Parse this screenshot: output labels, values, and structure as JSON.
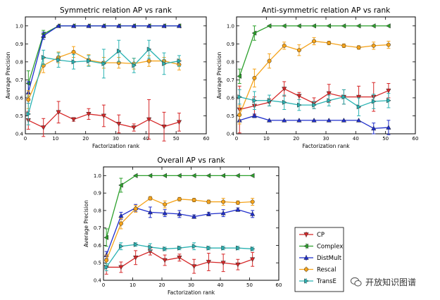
{
  "chart_data": [
    {
      "type": "line",
      "title": "Symmetric relation AP vs rank",
      "xlabel": "Factorization rank",
      "ylabel": "Average Precision",
      "xlim": [
        0,
        60
      ],
      "ylim": [
        0.4,
        1.05
      ],
      "xticks": [
        "0",
        "10",
        "20",
        "30",
        "40",
        "50",
        "60"
      ],
      "yticks": [
        "0.4",
        "0.5",
        "0.6",
        "0.7",
        "0.8",
        "0.9",
        "1.0"
      ],
      "x": [
        1,
        6,
        11,
        16,
        21,
        26,
        31,
        36,
        41,
        46,
        51
      ],
      "series": [
        {
          "name": "CP",
          "values": [
            0.475,
            0.435,
            0.52,
            0.48,
            0.51,
            0.5,
            0.455,
            0.435,
            0.48,
            0.44,
            0.465
          ],
          "err": [
            0.05,
            0.05,
            0.06,
            0.01,
            0.03,
            0.06,
            0.05,
            0.02,
            0.11,
            0.08,
            0.05
          ]
        },
        {
          "name": "Complex",
          "values": [
            0.68,
            0.955,
            1.0,
            1.0,
            1.0,
            1.0,
            1.0,
            1.0,
            1.0,
            1.0,
            1.0
          ],
          "err": [
            0.07,
            0.02,
            0,
            0,
            0,
            0,
            0,
            0,
            0,
            0,
            0
          ]
        },
        {
          "name": "DistMult",
          "values": [
            0.63,
            0.945,
            1.0,
            1.0,
            1.0,
            1.0,
            1.0,
            1.0,
            1.0,
            1.0,
            1.0
          ],
          "err": [
            0.06,
            0.02,
            0,
            0,
            0,
            0,
            0,
            0,
            0,
            0,
            0
          ]
        },
        {
          "name": "Rescal",
          "values": [
            0.59,
            0.78,
            0.825,
            0.855,
            0.81,
            0.795,
            0.795,
            0.79,
            0.805,
            0.805,
            0.785
          ],
          "err": [
            0.05,
            0.04,
            0.03,
            0.03,
            0.03,
            0.03,
            0.03,
            0.03,
            0.03,
            0.02,
            0.03
          ]
        },
        {
          "name": "TransE",
          "values": [
            0.51,
            0.825,
            0.81,
            0.8,
            0.805,
            0.79,
            0.86,
            0.78,
            0.87,
            0.79,
            0.805
          ],
          "err": [
            0.06,
            0.04,
            0.04,
            0.04,
            0.03,
            0.08,
            0.06,
            0.04,
            0.05,
            0.06,
            0.03
          ]
        }
      ]
    },
    {
      "type": "line",
      "title": "Anti-symmetric relation AP vs rank",
      "xlabel": "Factorization rank",
      "ylabel": "Average Precision",
      "xlim": [
        0,
        60
      ],
      "ylim": [
        0.4,
        1.05
      ],
      "xticks": [
        "0",
        "10",
        "20",
        "30",
        "40",
        "50",
        "60"
      ],
      "yticks": [
        "0.4",
        "0.5",
        "0.6",
        "0.7",
        "0.8",
        "0.9",
        "1.0"
      ],
      "x": [
        1,
        6,
        11,
        16,
        21,
        26,
        31,
        36,
        41,
        46,
        51
      ],
      "series": [
        {
          "name": "CP",
          "values": [
            0.535,
            0.555,
            0.575,
            0.65,
            0.61,
            0.57,
            0.625,
            0.605,
            0.605,
            0.605,
            0.64
          ],
          "err": [
            0.13,
            0.05,
            0.02,
            0.04,
            0.02,
            0.03,
            0.05,
            0.04,
            0.06,
            0.08,
            0.04
          ]
        },
        {
          "name": "Complex",
          "values": [
            0.72,
            0.96,
            1.0,
            1.0,
            1.0,
            1.0,
            1.0,
            1.0,
            1.0,
            1.0,
            1.0
          ],
          "err": [
            0.04,
            0.04,
            0,
            0,
            0,
            0,
            0,
            0,
            0,
            0,
            0
          ]
        },
        {
          "name": "DistMult",
          "values": [
            0.475,
            0.5,
            0.475,
            0.475,
            0.475,
            0.475,
            0.475,
            0.475,
            0.475,
            0.43,
            0.435
          ],
          "err": [
            0,
            0.01,
            0,
            0,
            0,
            0,
            0,
            0,
            0,
            0.03,
            0.04
          ]
        },
        {
          "name": "Rescal",
          "values": [
            0.505,
            0.71,
            0.805,
            0.89,
            0.865,
            0.915,
            0.905,
            0.89,
            0.88,
            0.89,
            0.895
          ],
          "err": [
            0.05,
            0.05,
            0.04,
            0.02,
            0.03,
            0.02,
            0.01,
            0.01,
            0.01,
            0.02,
            0.02
          ]
        },
        {
          "name": "TransE",
          "values": [
            0.605,
            0.585,
            0.585,
            0.575,
            0.56,
            0.56,
            0.585,
            0.605,
            0.55,
            0.58,
            0.585
          ],
          "err": [
            0.04,
            0.05,
            0.03,
            0.04,
            0.03,
            0.02,
            0.03,
            0.04,
            0.05,
            0.04,
            0.04
          ]
        }
      ]
    },
    {
      "type": "line",
      "title": "Overall AP vs rank",
      "xlabel": "Factorization rank",
      "ylabel": "Average Precision",
      "xlim": [
        0,
        60
      ],
      "ylim": [
        0.4,
        1.05
      ],
      "xticks": [
        "0",
        "10",
        "20",
        "30",
        "40",
        "50",
        "60"
      ],
      "yticks": [
        "0.4",
        "0.5",
        "0.6",
        "0.7",
        "0.8",
        "0.9",
        "1.0"
      ],
      "x": [
        1,
        6,
        11,
        16,
        21,
        26,
        31,
        36,
        41,
        46,
        51
      ],
      "legend_loc": "outside-right",
      "series": [
        {
          "name": "CP",
          "values": [
            0.475,
            0.475,
            0.53,
            0.565,
            0.515,
            0.53,
            0.48,
            0.505,
            0.5,
            0.49,
            0.52
          ],
          "err": [
            0.04,
            0.03,
            0.04,
            0.02,
            0.03,
            0.02,
            0.04,
            0.05,
            0.05,
            0.03,
            0.04
          ]
        },
        {
          "name": "Complex",
          "values": [
            0.645,
            0.945,
            1.0,
            1.0,
            1.0,
            1.0,
            1.0,
            1.0,
            1.0,
            1.0,
            1.0
          ],
          "err": [
            0.05,
            0.04,
            0,
            0,
            0,
            0,
            0,
            0,
            0,
            0,
            0
          ]
        },
        {
          "name": "DistMult",
          "values": [
            0.545,
            0.77,
            0.815,
            0.79,
            0.785,
            0.78,
            0.765,
            0.78,
            0.785,
            0.805,
            0.78
          ],
          "err": [
            0.02,
            0.02,
            0.02,
            0.03,
            0.02,
            0.02,
            0.01,
            0.01,
            0.02,
            0.01,
            0.02
          ]
        },
        {
          "name": "Rescal",
          "values": [
            0.515,
            0.725,
            0.81,
            0.87,
            0.835,
            0.865,
            0.86,
            0.85,
            0.85,
            0.845,
            0.85
          ],
          "err": [
            0.03,
            0.03,
            0.02,
            0.01,
            0.02,
            0.01,
            0.01,
            0.01,
            0.02,
            0.01,
            0.02
          ]
        },
        {
          "name": "TransE",
          "values": [
            0.475,
            0.595,
            0.605,
            0.59,
            0.58,
            0.585,
            0.595,
            0.585,
            0.585,
            0.585,
            0.58
          ],
          "err": [
            0.02,
            0.02,
            0.01,
            0.02,
            0.01,
            0.01,
            0.02,
            0.01,
            0.01,
            0.01,
            0.01
          ]
        }
      ]
    }
  ],
  "legend": [
    "CP",
    "Complex",
    "DistMult",
    "Rescal",
    "TransE"
  ],
  "colors": {
    "CP": "#d62728",
    "Complex": "#2ca02c",
    "DistMult": "#1f2ecc",
    "Rescal": "#f5a31a",
    "TransE": "#2ab3b3"
  },
  "markers": {
    "CP": "triangle-down",
    "Complex": "triangle-left",
    "DistMult": "triangle-up",
    "Rescal": "circle",
    "TransE": "triangle-right"
  },
  "watermark": {
    "text": "开放知识图谱",
    "icon": "wechat-icon"
  }
}
